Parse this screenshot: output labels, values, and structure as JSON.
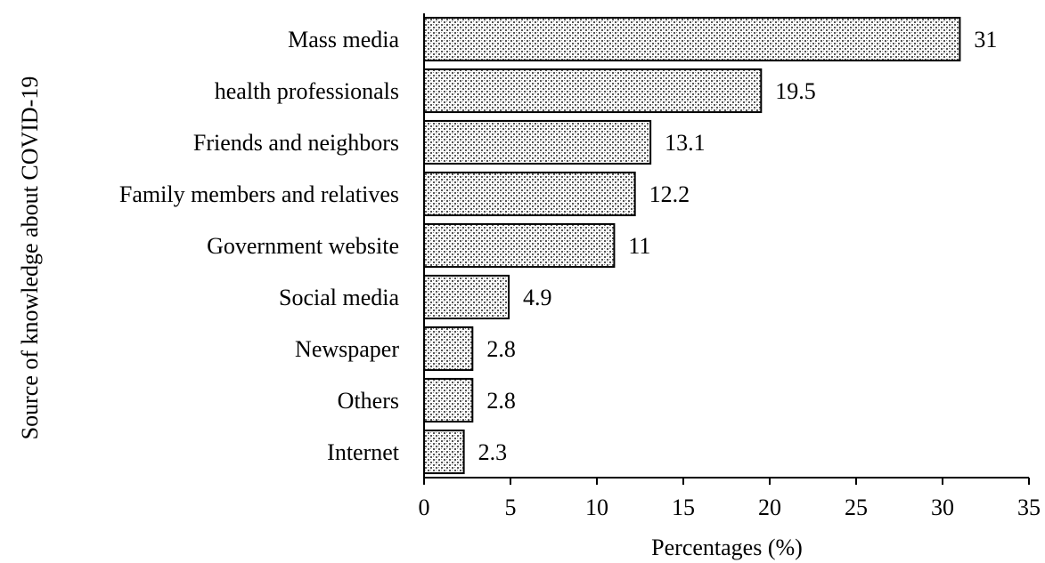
{
  "chart_data": {
    "type": "bar",
    "orientation": "horizontal",
    "categories": [
      "Mass media",
      "health professionals",
      "Friends and neighbors",
      "Family members and relatives",
      "Government website",
      "Social media",
      "Newspaper",
      "Others",
      "Internet"
    ],
    "values": [
      31,
      19.5,
      13.1,
      12.2,
      11,
      4.9,
      2.8,
      2.8,
      2.3
    ],
    "value_labels": [
      "31",
      "19.5",
      "13.1",
      "12.2",
      "11",
      "4.9",
      "2.8",
      "2.8",
      "2.3"
    ],
    "xlabel": "Percentages (%)",
    "ylabel": "Source of knowledge about COVID-19",
    "xlim": [
      0,
      35
    ],
    "xticks": [
      "0",
      "5",
      "10",
      "15",
      "20",
      "25",
      "30",
      "35"
    ],
    "grid": false,
    "legend": "none",
    "bar_fill": "#b8b8b8",
    "bar_pattern": "crosshatch dots",
    "bar_stroke": "#000000"
  }
}
